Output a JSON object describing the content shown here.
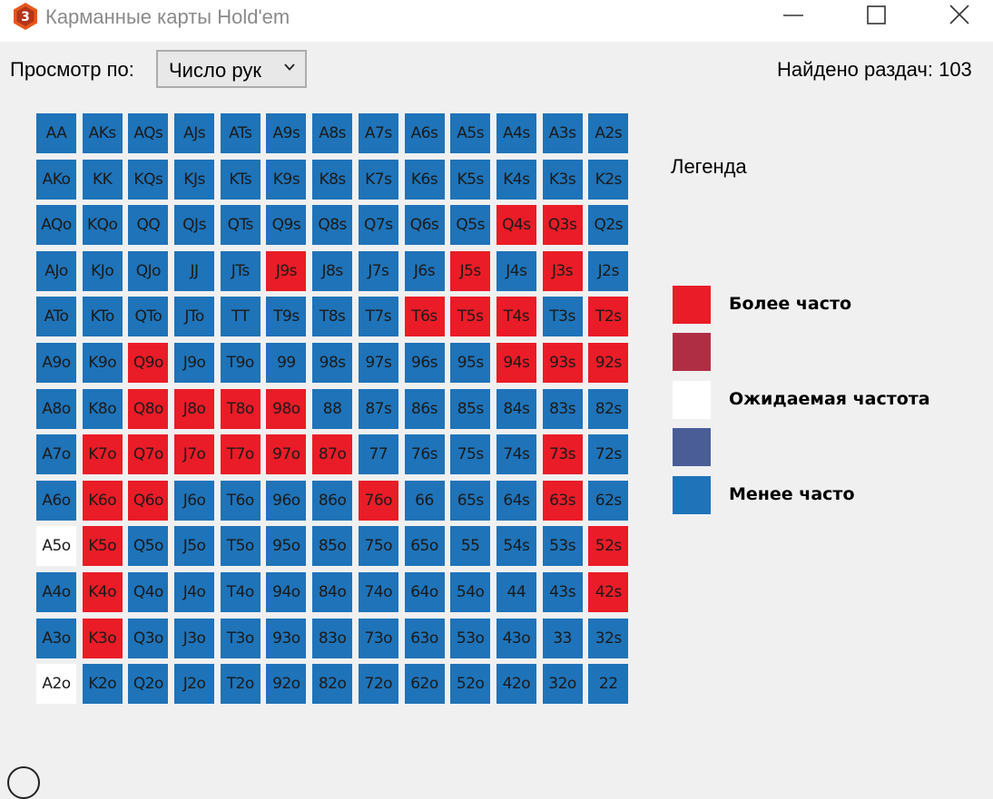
{
  "window": {
    "title": "Карманные карты Hold'em",
    "icon": "app-logo-icon",
    "controls": [
      "minimize-icon",
      "maximize-icon",
      "close-icon"
    ]
  },
  "toolbar": {
    "view_label": "Просмотр по:",
    "view_select": {
      "value": "Число рук",
      "icon": "chevron-down-icon"
    },
    "found_text": "Найдено раздач: 103"
  },
  "colors": {
    "more": "#ea1c27",
    "more_mid": "#b02e44",
    "expected": "#ffffff",
    "less_mid": "#4a5d96",
    "less": "#1f73b8",
    "background": "#f0f0f0"
  },
  "grid": {
    "rows": [
      [
        [
          "AA",
          "b"
        ],
        [
          "AKs",
          "b"
        ],
        [
          "AQs",
          "b"
        ],
        [
          "AJs",
          "b"
        ],
        [
          "ATs",
          "b"
        ],
        [
          "A9s",
          "b"
        ],
        [
          "A8s",
          "b"
        ],
        [
          "A7s",
          "b"
        ],
        [
          "A6s",
          "b"
        ],
        [
          "A5s",
          "b"
        ],
        [
          "A4s",
          "b"
        ],
        [
          "A3s",
          "b"
        ],
        [
          "A2s",
          "b"
        ]
      ],
      [
        [
          "AKo",
          "b"
        ],
        [
          "KK",
          "b"
        ],
        [
          "KQs",
          "b"
        ],
        [
          "KJs",
          "b"
        ],
        [
          "KTs",
          "b"
        ],
        [
          "K9s",
          "b"
        ],
        [
          "K8s",
          "b"
        ],
        [
          "K7s",
          "b"
        ],
        [
          "K6s",
          "b"
        ],
        [
          "K5s",
          "b"
        ],
        [
          "K4s",
          "b"
        ],
        [
          "K3s",
          "b"
        ],
        [
          "K2s",
          "b"
        ]
      ],
      [
        [
          "AQo",
          "b"
        ],
        [
          "KQo",
          "b"
        ],
        [
          "QQ",
          "b"
        ],
        [
          "QJs",
          "b"
        ],
        [
          "QTs",
          "b"
        ],
        [
          "Q9s",
          "b"
        ],
        [
          "Q8s",
          "b"
        ],
        [
          "Q7s",
          "b"
        ],
        [
          "Q6s",
          "b"
        ],
        [
          "Q5s",
          "b"
        ],
        [
          "Q4s",
          "r"
        ],
        [
          "Q3s",
          "r"
        ],
        [
          "Q2s",
          "b"
        ]
      ],
      [
        [
          "AJo",
          "b"
        ],
        [
          "KJo",
          "b"
        ],
        [
          "QJo",
          "b"
        ],
        [
          "JJ",
          "b"
        ],
        [
          "JTs",
          "b"
        ],
        [
          "J9s",
          "r"
        ],
        [
          "J8s",
          "b"
        ],
        [
          "J7s",
          "b"
        ],
        [
          "J6s",
          "b"
        ],
        [
          "J5s",
          "r"
        ],
        [
          "J4s",
          "b"
        ],
        [
          "J3s",
          "r"
        ],
        [
          "J2s",
          "b"
        ]
      ],
      [
        [
          "ATo",
          "b"
        ],
        [
          "KTo",
          "b"
        ],
        [
          "QTo",
          "b"
        ],
        [
          "JTo",
          "b"
        ],
        [
          "TT",
          "b"
        ],
        [
          "T9s",
          "b"
        ],
        [
          "T8s",
          "b"
        ],
        [
          "T7s",
          "b"
        ],
        [
          "T6s",
          "r"
        ],
        [
          "T5s",
          "r"
        ],
        [
          "T4s",
          "r"
        ],
        [
          "T3s",
          "b"
        ],
        [
          "T2s",
          "r"
        ]
      ],
      [
        [
          "A9o",
          "b"
        ],
        [
          "K9o",
          "b"
        ],
        [
          "Q9o",
          "r"
        ],
        [
          "J9o",
          "b"
        ],
        [
          "T9o",
          "b"
        ],
        [
          "99",
          "b"
        ],
        [
          "98s",
          "b"
        ],
        [
          "97s",
          "b"
        ],
        [
          "96s",
          "b"
        ],
        [
          "95s",
          "b"
        ],
        [
          "94s",
          "r"
        ],
        [
          "93s",
          "r"
        ],
        [
          "92s",
          "r"
        ]
      ],
      [
        [
          "A8o",
          "b"
        ],
        [
          "K8o",
          "b"
        ],
        [
          "Q8o",
          "r"
        ],
        [
          "J8o",
          "r"
        ],
        [
          "T8o",
          "r"
        ],
        [
          "98o",
          "r"
        ],
        [
          "88",
          "b"
        ],
        [
          "87s",
          "b"
        ],
        [
          "86s",
          "b"
        ],
        [
          "85s",
          "b"
        ],
        [
          "84s",
          "b"
        ],
        [
          "83s",
          "b"
        ],
        [
          "82s",
          "b"
        ]
      ],
      [
        [
          "A7o",
          "b"
        ],
        [
          "K7o",
          "r"
        ],
        [
          "Q7o",
          "r"
        ],
        [
          "J7o",
          "r"
        ],
        [
          "T7o",
          "r"
        ],
        [
          "97o",
          "r"
        ],
        [
          "87o",
          "r"
        ],
        [
          "77",
          "b"
        ],
        [
          "76s",
          "b"
        ],
        [
          "75s",
          "b"
        ],
        [
          "74s",
          "b"
        ],
        [
          "73s",
          "r"
        ],
        [
          "72s",
          "b"
        ]
      ],
      [
        [
          "A6o",
          "b"
        ],
        [
          "K6o",
          "r"
        ],
        [
          "Q6o",
          "r"
        ],
        [
          "J6o",
          "b"
        ],
        [
          "T6o",
          "b"
        ],
        [
          "96o",
          "b"
        ],
        [
          "86o",
          "b"
        ],
        [
          "76o",
          "r"
        ],
        [
          "66",
          "b"
        ],
        [
          "65s",
          "b"
        ],
        [
          "64s",
          "b"
        ],
        [
          "63s",
          "r"
        ],
        [
          "62s",
          "b"
        ]
      ],
      [
        [
          "A5o",
          "w"
        ],
        [
          "K5o",
          "r"
        ],
        [
          "Q5o",
          "b"
        ],
        [
          "J5o",
          "b"
        ],
        [
          "T5o",
          "b"
        ],
        [
          "95o",
          "b"
        ],
        [
          "85o",
          "b"
        ],
        [
          "75o",
          "b"
        ],
        [
          "65o",
          "b"
        ],
        [
          "55",
          "b"
        ],
        [
          "54s",
          "b"
        ],
        [
          "53s",
          "b"
        ],
        [
          "52s",
          "r"
        ]
      ],
      [
        [
          "A4o",
          "b"
        ],
        [
          "K4o",
          "r"
        ],
        [
          "Q4o",
          "b"
        ],
        [
          "J4o",
          "b"
        ],
        [
          "T4o",
          "b"
        ],
        [
          "94o",
          "b"
        ],
        [
          "84o",
          "b"
        ],
        [
          "74o",
          "b"
        ],
        [
          "64o",
          "b"
        ],
        [
          "54o",
          "b"
        ],
        [
          "44",
          "b"
        ],
        [
          "43s",
          "b"
        ],
        [
          "42s",
          "r"
        ]
      ],
      [
        [
          "A3o",
          "b"
        ],
        [
          "K3o",
          "r"
        ],
        [
          "Q3o",
          "b"
        ],
        [
          "J3o",
          "b"
        ],
        [
          "T3o",
          "b"
        ],
        [
          "93o",
          "b"
        ],
        [
          "83o",
          "b"
        ],
        [
          "73o",
          "b"
        ],
        [
          "63o",
          "b"
        ],
        [
          "53o",
          "b"
        ],
        [
          "43o",
          "b"
        ],
        [
          "33",
          "b"
        ],
        [
          "32s",
          "b"
        ]
      ],
      [
        [
          "A2o",
          "w"
        ],
        [
          "K2o",
          "b"
        ],
        [
          "Q2o",
          "b"
        ],
        [
          "J2o",
          "b"
        ],
        [
          "T2o",
          "b"
        ],
        [
          "92o",
          "b"
        ],
        [
          "82o",
          "b"
        ],
        [
          "72o",
          "b"
        ],
        [
          "62o",
          "b"
        ],
        [
          "52o",
          "b"
        ],
        [
          "42o",
          "b"
        ],
        [
          "32o",
          "b"
        ],
        [
          "22",
          "b"
        ]
      ]
    ]
  },
  "legend": {
    "title": "Легенда",
    "items": [
      {
        "label": "Более часто",
        "color": "#ea1c27"
      },
      {
        "label": "",
        "color": "#b02e44"
      },
      {
        "label": "Ожидаемая частота",
        "color": "#ffffff"
      },
      {
        "label": "",
        "color": "#4a5d96"
      },
      {
        "label": "Менее часто",
        "color": "#1f73b8"
      }
    ]
  }
}
